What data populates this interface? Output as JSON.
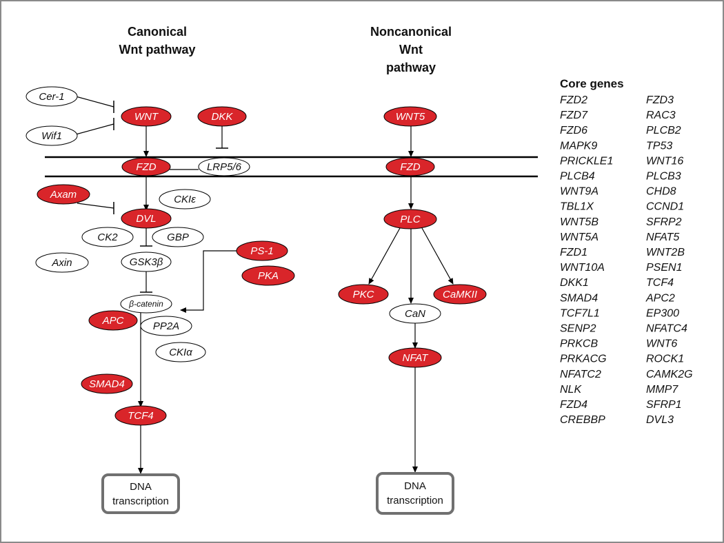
{
  "canonical": {
    "title_line1": "Canonical",
    "title_line2": "Wnt pathway",
    "nodes": {
      "cer1": "Cer-1",
      "wif1": "Wif1",
      "wnt": "WNT",
      "dkk": "DKK",
      "fzd": "FZD",
      "lrp": "LRP5/6",
      "axam": "Axam",
      "cki_e": "CKIε",
      "dvl": "DVL",
      "ck2": "CK2",
      "gbp": "GBP",
      "axin": "Axin",
      "gsk3b": "GSK3β",
      "ps1": "PS-1",
      "pka": "PKA",
      "bcatenin": "β-catenin",
      "apc": "APC",
      "pp2a": "PP2A",
      "cki_a": "CKIα",
      "smad4": "SMAD4",
      "tcf4": "TCF4"
    },
    "output_line1": "DNA",
    "output_line2": "transcription"
  },
  "noncanonical": {
    "title_line1": "Noncanonical",
    "title_line2": "Wnt",
    "title_line3": "pathway",
    "nodes": {
      "wnt5": "WNT5",
      "fzd": "FZD",
      "plc": "PLC",
      "pkc": "PKC",
      "can": "CaN",
      "camkii": "CaMKII",
      "nfat": "NFAT"
    },
    "output_line1": "DNA",
    "output_line2": "transcription"
  },
  "core_genes": {
    "title": "Core genes",
    "col1": [
      "FZD2",
      "FZD7",
      "FZD6",
      "MAPK9",
      "PRICKLE1",
      "PLCB4",
      "WNT9A",
      "TBL1X",
      "WNT5B",
      "WNT5A",
      "FZD1",
      "WNT10A",
      "DKK1",
      "SMAD4",
      "TCF7L1",
      "SENP2",
      "PRKCB",
      "PRKACG",
      "NFATC2",
      "NLK",
      "FZD4",
      "CREBBP"
    ],
    "col2": [
      "FZD3",
      "RAC3",
      "PLCB2",
      "TP53",
      "WNT16",
      "PLCB3",
      "CHD8",
      "CCND1",
      "SFRP2",
      "NFAT5",
      "WNT2B",
      "PSEN1",
      "TCF4",
      "APC2",
      "EP300",
      "NFATC4",
      "WNT6",
      "ROCK1",
      "CAMK2G",
      "MMP7",
      "SFRP1",
      "DVL3"
    ]
  },
  "colors": {
    "highlight": "#d9252a",
    "membrane": "#000000",
    "box_border": "#707070"
  }
}
